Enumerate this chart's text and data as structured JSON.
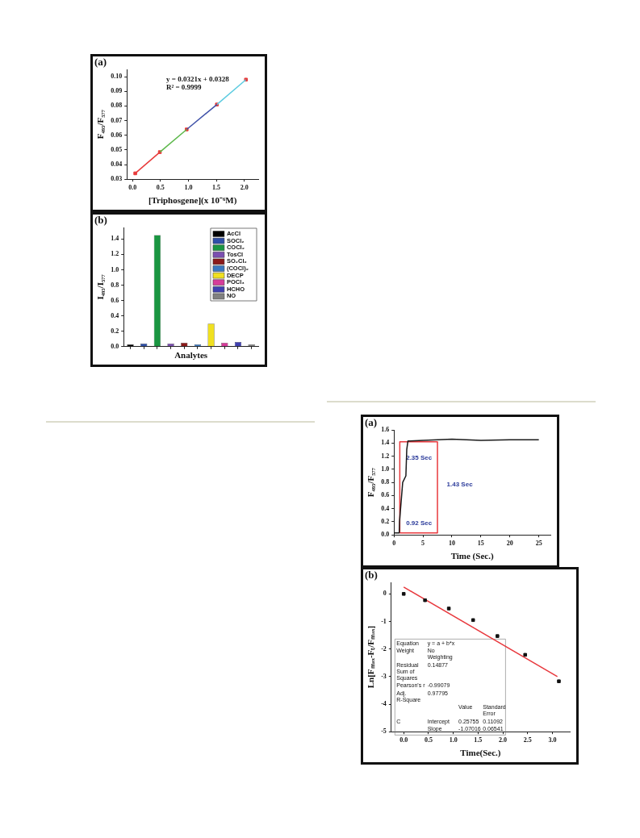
{
  "chart_data": [
    {
      "type": "line",
      "title": "(a)",
      "xlabel": "[Triphosgene](x 10⁻⁶M)",
      "ylabel": "F₄₉₅/F₅₇₇",
      "annotations": [
        "y = 0.0321x + 0.0328",
        "R² = 0.9999"
      ],
      "xlim": [
        -0.1,
        2.25
      ],
      "xticks": [
        {
          "value": 0,
          "label": "0.0"
        },
        0.5,
        {
          "value": 1,
          "label": "1.0"
        },
        1.5,
        {
          "value": 2,
          "label": "2.0"
        }
      ],
      "ylim": [
        0.03,
        0.105
      ],
      "yticks": [
        0.03,
        0.04,
        0.05,
        0.06,
        0.07,
        0.08,
        0.09,
        {
          "value": 0.1,
          "label": "0.10"
        }
      ],
      "series": [
        {
          "type": "line",
          "color": "#e83a3a",
          "x": [
            0.05,
            0.49
          ],
          "values": [
            0.034,
            0.0485
          ],
          "marker": "none"
        },
        {
          "type": "line",
          "color": "#5cb84a",
          "x": [
            0.49,
            0.97
          ],
          "values": [
            0.0485,
            0.064
          ],
          "marker": "none"
        },
        {
          "type": "line",
          "color": "#3f51a8",
          "x": [
            0.97,
            1.51
          ],
          "values": [
            0.064,
            0.081
          ],
          "marker": "none"
        },
        {
          "type": "line",
          "color": "#5ccbe0",
          "x": [
            1.51,
            2.03
          ],
          "values": [
            0.081,
            0.098
          ],
          "marker": "none"
        },
        {
          "type": "scatter",
          "color": "#e83a3a",
          "x": [
            0.05,
            0.49,
            0.97,
            1.51,
            2.03
          ],
          "values": [
            0.034,
            0.0485,
            0.064,
            0.081,
            0.098
          ],
          "marker": "square"
        }
      ]
    },
    {
      "type": "bar",
      "title": "(b)",
      "xlabel": "Analytes",
      "ylabel": "I₄₉₅/I₅₇₇",
      "legend": "top right",
      "categories": [
        null,
        null,
        null,
        null,
        null,
        null,
        null,
        null,
        null,
        null
      ],
      "ylim": [
        0,
        1.55
      ],
      "yticks": [
        {
          "value": 0,
          "label": "0.0"
        },
        0.2,
        0.4,
        0.6,
        0.8,
        {
          "value": 1,
          "label": "1.0"
        },
        1.2,
        1.4
      ],
      "series": [
        {
          "name": "AcCl",
          "color": "#000000",
          "values": [
            0.03,
            null,
            null,
            null,
            null,
            null,
            null,
            null,
            null,
            null
          ]
        },
        {
          "name": "SOCl₂",
          "color": "#2e4fa8",
          "values": [
            null,
            0.04,
            null,
            null,
            null,
            null,
            null,
            null,
            null,
            null
          ]
        },
        {
          "name": "COCl₂",
          "color": "#1a9641",
          "values": [
            null,
            null,
            1.45,
            null,
            null,
            null,
            null,
            null,
            null,
            null
          ]
        },
        {
          "name": "TosCl",
          "color": "#7b4fb0",
          "values": [
            null,
            null,
            null,
            0.04,
            null,
            null,
            null,
            null,
            null,
            null
          ]
        },
        {
          "name": "SO₂Cl₂",
          "color": "#8b1a1a",
          "values": [
            null,
            null,
            null,
            null,
            0.05,
            null,
            null,
            null,
            null,
            null
          ]
        },
        {
          "name": "(COCl)₂",
          "color": "#3a78c0",
          "values": [
            null,
            null,
            null,
            null,
            null,
            0.03,
            null,
            null,
            null,
            null
          ]
        },
        {
          "name": "DECP",
          "color": "#f0e020",
          "values": [
            null,
            null,
            null,
            null,
            null,
            null,
            0.3,
            null,
            null,
            null
          ]
        },
        {
          "name": "POCl₃",
          "color": "#d63c9a",
          "values": [
            null,
            null,
            null,
            null,
            null,
            null,
            null,
            0.05,
            null,
            null
          ]
        },
        {
          "name": "HCHO",
          "color": "#4040b0",
          "values": [
            null,
            null,
            null,
            null,
            null,
            null,
            null,
            null,
            0.06,
            null
          ]
        },
        {
          "name": "NO",
          "color": "#808080",
          "values": [
            null,
            null,
            null,
            null,
            null,
            null,
            null,
            null,
            null,
            0.03
          ]
        }
      ]
    },
    {
      "type": "line",
      "title": "(a)",
      "xlabel": "Time (Sec.)",
      "ylabel": "F₄₉₅/F₅₇₇",
      "annotations": [
        "2.35 Sec",
        "0.92 Sec",
        "1.43 Sec"
      ],
      "xlim": [
        0,
        27
      ],
      "xticks": [
        0,
        5,
        10,
        15,
        20,
        25
      ],
      "ylim": [
        0,
        1.6
      ],
      "yticks": [
        {
          "value": 0,
          "label": "0.0"
        },
        0.2,
        0.4,
        0.6,
        0.8,
        {
          "value": 1,
          "label": "1.0"
        },
        1.2,
        1.4,
        1.6
      ],
      "series": [
        {
          "type": "line",
          "color": "#1a1a1a",
          "x": [
            0,
            0.9,
            0.95,
            1.5,
            2.05,
            2.2,
            2.4,
            5,
            10,
            15,
            20,
            25
          ],
          "values": [
            0.03,
            0.03,
            0.2,
            0.8,
            0.9,
            1.3,
            1.43,
            1.44,
            1.46,
            1.44,
            1.45,
            1.45
          ],
          "marker": "none"
        },
        {
          "type": "line",
          "color": "#e8383d",
          "x": [
            1,
            1,
            7.5,
            7.5
          ],
          "values": [
            0.03,
            1.42,
            1.42,
            0.03
          ],
          "marker": "none"
        },
        {
          "type": "line",
          "color": "#e8383d",
          "x": [
            1,
            7.5
          ],
          "values": [
            0.03,
            0.03
          ],
          "marker": "none"
        }
      ]
    },
    {
      "type": "scatter",
      "title": "(b)",
      "xlabel": "Time(Sec.)",
      "ylabel": "Ln[Fₘₐₓ-Fₜ/Fₘₐₓ]",
      "annotations": [
        "Equation\ty = a + b*x",
        "Weight\tNo Weighting",
        "Residual Sum of Squares\t0.14877",
        "Pearson's r\t-0.99079",
        "Adj. R-Square\t0.97795",
        "\t\tValue\tStandard Error",
        "C\tIntercept\t0.25755\t0.11092",
        "\tSlope\t-1.07016\t0.06541"
      ],
      "xlim": [
        -0.25,
        3.35
      ],
      "xticks": [
        {
          "value": 0,
          "label": "0.0"
        },
        0.5,
        {
          "value": 1,
          "label": "1.0"
        },
        1.5,
        {
          "value": 2,
          "label": "2.0"
        },
        2.5,
        {
          "value": 3,
          "label": "3.0"
        }
      ],
      "ylim": [
        -5,
        0.42
      ],
      "yticks": [
        -5,
        -4,
        -3,
        -2,
        -1,
        0
      ],
      "series": [
        {
          "type": "scatter",
          "color": "#111111",
          "x": [
            0,
            0.43,
            0.91,
            1.4,
            1.89,
            2.45,
            3.13
          ],
          "values": [
            0,
            -0.23,
            -0.53,
            -0.95,
            -1.53,
            -2.21,
            -3.17
          ],
          "marker": "square"
        },
        {
          "type": "line",
          "color": "#e8383d",
          "x": [
            0,
            3.1
          ],
          "values": [
            0.25,
            -3.0
          ],
          "marker": "none"
        }
      ]
    }
  ]
}
